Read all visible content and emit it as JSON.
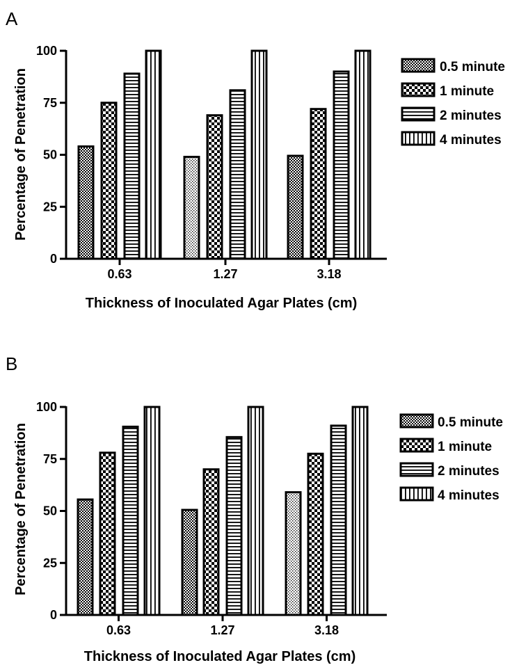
{
  "chart_data": [
    {
      "type": "bar",
      "panel_label": "A",
      "categories": [
        "0.63",
        "1.27",
        "3.18"
      ],
      "series": [
        {
          "name": "0.5 minute",
          "values": [
            54,
            49,
            49.5
          ]
        },
        {
          "name": "1 minute",
          "values": [
            75,
            69,
            72
          ]
        },
        {
          "name": "2 minutes",
          "values": [
            89,
            81,
            90
          ]
        },
        {
          "name": "4 minutes",
          "values": [
            100,
            100,
            100
          ]
        }
      ],
      "xlabel": "Thickness of Inoculated Agar Plates (cm)",
      "ylabel": "Percentage of Penetration",
      "ylim": [
        0,
        100
      ],
      "yticks": [
        "0",
        "25",
        "50",
        "75",
        "100"
      ],
      "legend_position": "right",
      "grid": false
    },
    {
      "type": "bar",
      "panel_label": "B",
      "categories": [
        "0.63",
        "1.27",
        "3.18"
      ],
      "series": [
        {
          "name": "0.5 minute",
          "values": [
            55.5,
            50.5,
            59
          ]
        },
        {
          "name": "1 minute",
          "values": [
            78,
            70,
            77.5
          ]
        },
        {
          "name": "2 minutes",
          "values": [
            90.5,
            85.5,
            91
          ]
        },
        {
          "name": "4 minutes",
          "values": [
            100,
            100,
            100
          ]
        }
      ],
      "xlabel": "Thickness of Inoculated Agar Plates (cm)",
      "ylabel": "Percentage of Penetration",
      "ylim": [
        0,
        100
      ],
      "yticks": [
        "0",
        "25",
        "50",
        "75",
        "100"
      ],
      "legend_position": "right",
      "grid": false
    }
  ]
}
